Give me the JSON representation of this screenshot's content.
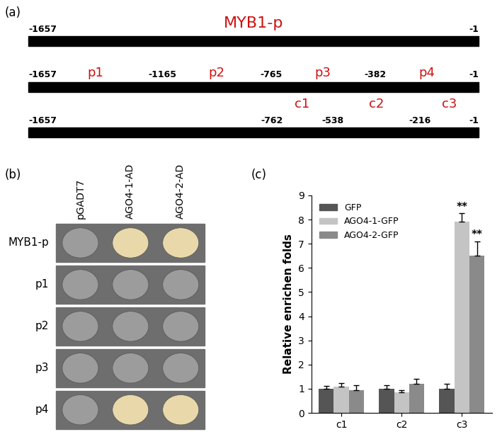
{
  "panel_a": {
    "label": "(a)",
    "promoter": {
      "name": "MYB1-p",
      "start": -1657,
      "end": -1
    },
    "fragments": [
      {
        "name": "p1",
        "start": -1657,
        "end": -1165
      },
      {
        "name": "p2",
        "start": -1165,
        "end": -765
      },
      {
        "name": "p3",
        "start": -765,
        "end": -382
      },
      {
        "name": "p4",
        "start": -382,
        "end": -1
      }
    ],
    "chip_regions": [
      {
        "name": "c1",
        "start": -762,
        "end": -538
      },
      {
        "name": "c2",
        "start": -538,
        "end": -216
      },
      {
        "name": "c3",
        "start": -216,
        "end": -1
      }
    ]
  },
  "panel_b": {
    "label": "(b)",
    "columns": [
      "pGADT7",
      "AGO4-1-AD",
      "AGO4-2-AD"
    ],
    "rows": [
      {
        "name": "MYB1-p",
        "growth": [
          false,
          true,
          true
        ]
      },
      {
        "name": "p1",
        "growth": [
          false,
          false,
          false
        ]
      },
      {
        "name": "p2",
        "growth": [
          false,
          false,
          false
        ]
      },
      {
        "name": "p3",
        "growth": [
          false,
          false,
          false
        ]
      },
      {
        "name": "p4",
        "growth": [
          false,
          true,
          true
        ]
      }
    ]
  },
  "chart_data": {
    "type": "bar",
    "label": "(c)",
    "y_label": "Relative enrichen folds",
    "categories": [
      "c1",
      "c2",
      "c3"
    ],
    "series": [
      {
        "name": "GFP",
        "color": "#555555",
        "values": [
          1.0,
          1.0,
          1.0
        ],
        "errors": [
          0.12,
          0.15,
          0.2
        ]
      },
      {
        "name": "AGO4-1-GFP",
        "color": "#c4c4c4",
        "values": [
          1.1,
          0.85,
          7.9
        ],
        "errors": [
          0.12,
          0.1,
          0.35
        ]
      },
      {
        "name": "AGO4-2-GFP",
        "color": "#8a8a8a",
        "values": [
          0.95,
          1.2,
          6.5
        ],
        "errors": [
          0.2,
          0.2,
          0.6
        ]
      }
    ],
    "annotations": [
      {
        "text": "**",
        "category": "c3",
        "series": "AGO4-1-GFP"
      },
      {
        "text": "**",
        "category": "c3",
        "series": "AGO4-2-GFP"
      }
    ],
    "ylim": [
      0,
      9
    ],
    "yticks": [
      0,
      1,
      2,
      3,
      4,
      5,
      6,
      7,
      8,
      9
    ],
    "legend": "upper left"
  }
}
